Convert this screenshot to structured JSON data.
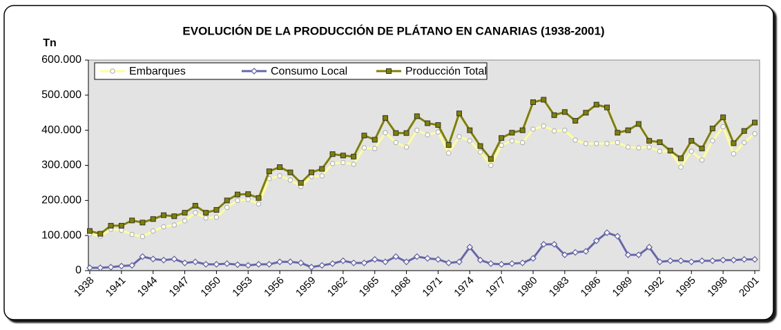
{
  "chart_data": {
    "type": "line",
    "title": "EVOLUCIÓN DE LA PRODUCCIÓN DE PLÁTANO EN CANARIAS (1938-2001)",
    "y_label": "Tn",
    "x": [
      1938,
      1939,
      1940,
      1941,
      1942,
      1943,
      1944,
      1945,
      1946,
      1947,
      1948,
      1949,
      1950,
      1951,
      1952,
      1953,
      1954,
      1955,
      1956,
      1957,
      1958,
      1959,
      1960,
      1961,
      1962,
      1963,
      1964,
      1965,
      1966,
      1967,
      1968,
      1969,
      1970,
      1971,
      1972,
      1973,
      1974,
      1975,
      1976,
      1977,
      1978,
      1979,
      1980,
      1981,
      1982,
      1983,
      1984,
      1985,
      1986,
      1987,
      1988,
      1989,
      1990,
      1991,
      1992,
      1993,
      1994,
      1995,
      1996,
      1997,
      1998,
      1999,
      2000,
      2001
    ],
    "xlim": [
      1938,
      2001
    ],
    "xticks": [
      1938,
      1941,
      1944,
      1947,
      1950,
      1953,
      1956,
      1959,
      1962,
      1965,
      1968,
      1971,
      1974,
      1977,
      1980,
      1983,
      1986,
      1989,
      1992,
      1995,
      1998,
      2001
    ],
    "ylim": [
      0,
      600000
    ],
    "yticks": [
      0,
      {
        "value": 100000,
        "label": "100.000"
      },
      {
        "value": 200000,
        "label": "200.000"
      },
      {
        "value": 300000,
        "label": "300.000"
      },
      {
        "value": 400000,
        "label": "400.000"
      },
      {
        "value": 500000,
        "label": "500.000"
      },
      {
        "value": 600000,
        "label": "600.000"
      }
    ],
    "grid": false,
    "legend": "top-left",
    "series": [
      {
        "name": "Embarques",
        "color": "#ffff99",
        "marker": "circle",
        "values": [
          105000,
          98000,
          118000,
          115000,
          103000,
          97000,
          113000,
          125000,
          130000,
          142000,
          165000,
          150000,
          152000,
          180000,
          200000,
          203000,
          190000,
          262000,
          270000,
          258000,
          240000,
          268000,
          270000,
          305000,
          308000,
          303000,
          350000,
          348000,
          393000,
          365000,
          352000,
          400000,
          387000,
          395000,
          335000,
          382000,
          370000,
          338000,
          300000,
          357000,
          370000,
          365000,
          403000,
          412000,
          398000,
          400000,
          372000,
          362000,
          362000,
          362000,
          365000,
          352000,
          350000,
          352000,
          340000,
          340000,
          295000,
          340000,
          315000,
          370000,
          410000,
          333000,
          365000,
          390000
        ]
      },
      {
        "name": "Consumo Local",
        "color": "#6666aa",
        "marker": "diamond",
        "values": [
          8000,
          8000,
          10000,
          13000,
          15000,
          40000,
          33000,
          30000,
          33000,
          22000,
          25000,
          18000,
          18000,
          20000,
          17000,
          15000,
          18000,
          18000,
          25000,
          25000,
          22000,
          10000,
          15000,
          20000,
          28000,
          22000,
          22000,
          32000,
          25000,
          40000,
          25000,
          40000,
          35000,
          32000,
          22000,
          25000,
          67000,
          30000,
          20000,
          18000,
          20000,
          22000,
          35000,
          75000,
          75000,
          45000,
          52000,
          55000,
          85000,
          108000,
          98000,
          45000,
          45000,
          67000,
          25000,
          28000,
          28000,
          25000,
          28000,
          28000,
          30000,
          30000,
          32000,
          32000
        ]
      },
      {
        "name": "Producción Total",
        "color": "#808000",
        "marker": "square",
        "values": [
          113000,
          105000,
          128000,
          128000,
          143000,
          137000,
          147000,
          158000,
          155000,
          165000,
          185000,
          165000,
          173000,
          200000,
          217000,
          218000,
          207000,
          283000,
          295000,
          280000,
          250000,
          280000,
          290000,
          332000,
          328000,
          325000,
          385000,
          373000,
          435000,
          392000,
          392000,
          440000,
          420000,
          415000,
          358000,
          448000,
          400000,
          355000,
          318000,
          378000,
          393000,
          400000,
          480000,
          487000,
          443000,
          452000,
          427000,
          450000,
          473000,
          465000,
          393000,
          400000,
          418000,
          370000,
          366000,
          342000,
          320000,
          370000,
          348000,
          405000,
          437000,
          363000,
          398000,
          422000
        ]
      }
    ]
  }
}
